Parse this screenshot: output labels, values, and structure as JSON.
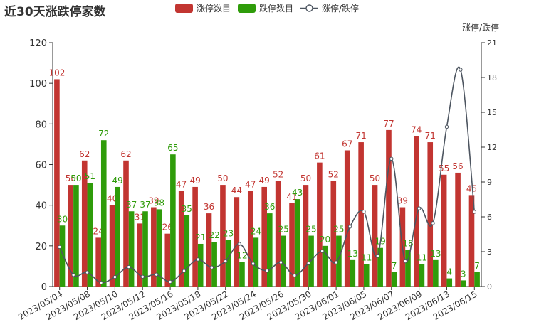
{
  "chart_data": {
    "type": "bar",
    "title": "近30天涨跌停家数",
    "legend": {
      "position": "top-center",
      "items": [
        {
          "name": "涨停数目",
          "color": "#c23531",
          "kind": "bar"
        },
        {
          "name": "跌停数目",
          "color": "#2f9c0a",
          "kind": "bar"
        },
        {
          "name": "涨停/跌停",
          "color": "#4d5560",
          "kind": "line"
        }
      ]
    },
    "y_left": {
      "min": 0,
      "max": 120,
      "ticks": [
        0,
        20,
        40,
        60,
        80,
        100,
        120
      ]
    },
    "y_right": {
      "name": "涨停/跌停",
      "min": 0,
      "max": 21,
      "ticks": [
        0,
        3,
        6,
        9,
        12,
        15,
        18,
        21
      ]
    },
    "x_tick_labels": [
      {
        "index": 0,
        "label": "2023/05/04"
      },
      {
        "index": 2,
        "label": "2023/05/08"
      },
      {
        "index": 4,
        "label": "2023/05/10"
      },
      {
        "index": 6,
        "label": "2023/05/12"
      },
      {
        "index": 8,
        "label": "2023/05/16"
      },
      {
        "index": 10,
        "label": "2023/05/18"
      },
      {
        "index": 12,
        "label": "2023/05/22"
      },
      {
        "index": 14,
        "label": "2023/05/24"
      },
      {
        "index": 16,
        "label": "2023/05/26"
      },
      {
        "index": 18,
        "label": "2023/05/30"
      },
      {
        "index": 20,
        "label": "2023/06/01"
      },
      {
        "index": 22,
        "label": "2023/06/05"
      },
      {
        "index": 24,
        "label": "2023/06/07"
      },
      {
        "index": 26,
        "label": "2023/06/09"
      },
      {
        "index": 28,
        "label": "2023/06/13"
      },
      {
        "index": 30,
        "label": "2023/06/15"
      }
    ],
    "series": [
      {
        "name": "涨停数目",
        "axis": "left",
        "values": [
          102,
          50,
          62,
          24,
          40,
          62,
          31,
          39,
          26,
          47,
          49,
          36,
          50,
          44,
          47,
          49,
          52,
          41,
          50,
          61,
          52,
          67,
          71,
          50,
          77,
          39,
          74,
          71,
          55,
          56,
          45
        ]
      },
      {
        "name": "跌停数目",
        "axis": "left",
        "values": [
          30,
          50,
          51,
          72,
          49,
          37,
          37,
          38,
          65,
          35,
          21,
          22,
          23,
          12,
          24,
          36,
          25,
          43,
          25,
          20,
          25,
          13,
          11,
          19,
          7,
          18,
          11,
          13,
          4,
          3,
          7
        ]
      },
      {
        "name": "涨停/跌停",
        "axis": "right",
        "values": [
          3.4,
          1.0,
          1.22,
          0.33,
          0.82,
          1.68,
          0.84,
          1.03,
          0.4,
          1.34,
          2.33,
          1.64,
          2.17,
          3.67,
          1.96,
          1.36,
          2.08,
          0.95,
          2.0,
          3.05,
          2.08,
          5.15,
          6.45,
          2.63,
          11.0,
          2.17,
          6.73,
          5.46,
          13.75,
          18.67,
          6.43
        ]
      }
    ]
  }
}
